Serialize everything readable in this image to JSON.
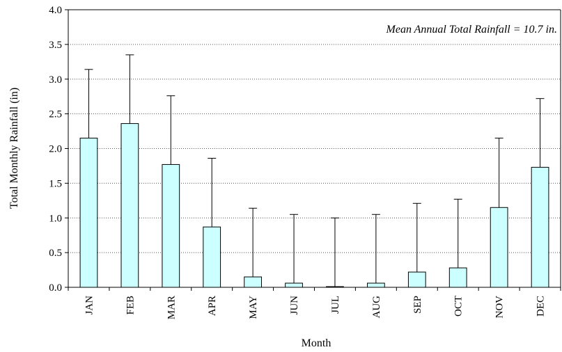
{
  "chart_data": {
    "type": "bar",
    "title": "",
    "xlabel": "Month",
    "ylabel": "Total Monthly Rainfall (in)",
    "annotation": "Mean Annual Total Rainfall = 10.7 in.",
    "categories": [
      "JAN",
      "FEB",
      "MAR",
      "APR",
      "MAY",
      "JUN",
      "JUL",
      "AUG",
      "SEP",
      "OCT",
      "NOV",
      "DEC"
    ],
    "values": [
      2.15,
      2.36,
      1.77,
      0.87,
      0.15,
      0.06,
      0.01,
      0.06,
      0.22,
      0.28,
      1.15,
      1.73
    ],
    "error_upper": [
      3.14,
      3.35,
      2.76,
      1.86,
      1.14,
      1.05,
      1.0,
      1.05,
      1.21,
      1.27,
      2.15,
      2.72
    ],
    "ylim": [
      0,
      4.0
    ],
    "yticks": [
      "0.0",
      "0.5",
      "1.0",
      "1.5",
      "2.0",
      "2.5",
      "3.0",
      "3.5",
      "4.0"
    ],
    "grid": "horizontal dotted",
    "bar_color": "#ccffff",
    "bar_stroke": "#000000"
  }
}
